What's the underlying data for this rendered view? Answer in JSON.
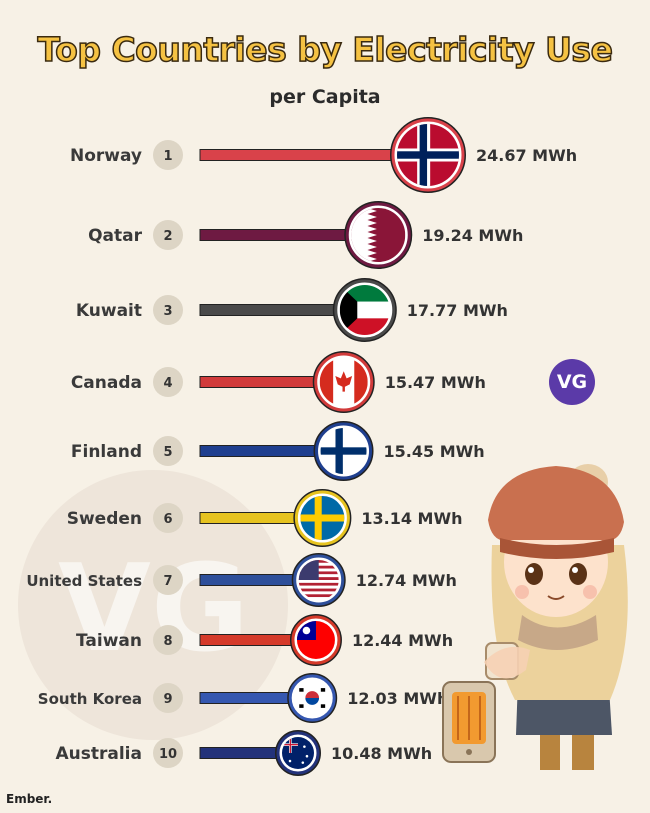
{
  "title": "Top Countries by Electricity Use",
  "subtitle": "per Capita",
  "credit": "Ember.",
  "badge": "VG",
  "watermark": "VG",
  "chart_data": {
    "type": "bar",
    "unit": "MWh",
    "categories": [
      "Norway",
      "Qatar",
      "Kuwait",
      "Canada",
      "Finland",
      "Sweden",
      "United States",
      "Taiwan",
      "South Korea",
      "Australia"
    ],
    "ranks": [
      "1",
      "2",
      "3",
      "4",
      "5",
      "6",
      "7",
      "8",
      "9",
      "10"
    ],
    "values": [
      24.67,
      19.24,
      17.77,
      15.47,
      15.45,
      13.14,
      12.74,
      12.44,
      12.03,
      10.48
    ],
    "value_labels": [
      "24.67 MWh",
      "19.24 MWh",
      "17.77 MWh",
      "15.47 MWh",
      "15.45 MWh",
      "13.14 MWh",
      "12.74 MWh",
      "12.44 MWh",
      "12.03 MWh",
      "10.48 MWh"
    ],
    "colors": [
      "#d9424a",
      "#6e1a42",
      "#4a4a4a",
      "#d13b3b",
      "#1f3f8f",
      "#e6c320",
      "#2e4f9a",
      "#d53a2a",
      "#3557b0",
      "#23327a"
    ],
    "flags": [
      "norway-flag",
      "qatar-flag",
      "kuwait-flag",
      "canada-flag",
      "finland-flag",
      "sweden-flag",
      "usa-flag",
      "taiwan-flag",
      "south-korea-flag",
      "australia-flag"
    ]
  }
}
